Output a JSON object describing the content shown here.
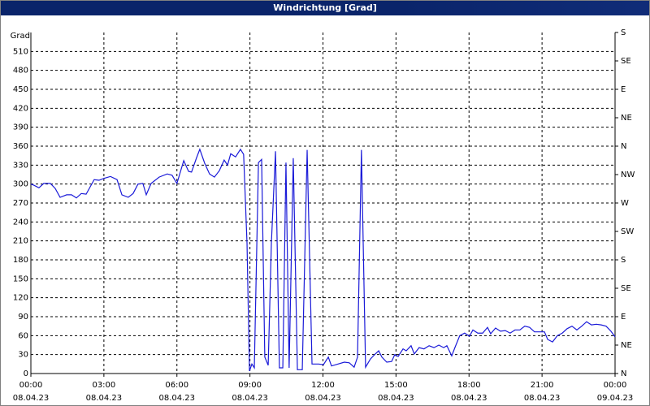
{
  "chart_data": {
    "type": "line",
    "title": "Windrichtung [Grad]",
    "y_label": "Grad",
    "color": "#1a1ad8",
    "grid": true,
    "xlim": [
      0,
      24
    ],
    "ylim": [
      0,
      540
    ],
    "y2lim": [
      0,
      540
    ],
    "xticks": [
      {
        "value": 0,
        "label": [
          "00:00",
          "08.04.23"
        ]
      },
      {
        "value": 3,
        "label": [
          "03:00",
          "08.04.23"
        ]
      },
      {
        "value": 6,
        "label": [
          "06:00",
          "08.04.23"
        ]
      },
      {
        "value": 9,
        "label": [
          "09:00",
          "08.04.23"
        ]
      },
      {
        "value": 12,
        "label": [
          "12:00",
          "08.04.23"
        ]
      },
      {
        "value": 15,
        "label": [
          "15:00",
          "08.04.23"
        ]
      },
      {
        "value": 18,
        "label": [
          "18:00",
          "08.04.23"
        ]
      },
      {
        "value": 21,
        "label": [
          "21:00",
          "08.04.23"
        ]
      },
      {
        "value": 24,
        "label": [
          "00:00",
          "09.04.23"
        ]
      }
    ],
    "yticks": [
      0,
      30,
      60,
      90,
      120,
      150,
      180,
      210,
      240,
      270,
      300,
      330,
      360,
      390,
      420,
      450,
      480,
      510
    ],
    "y2ticks": [
      {
        "value": 0,
        "label": "N"
      },
      {
        "value": 45,
        "label": "NE"
      },
      {
        "value": 90,
        "label": "E"
      },
      {
        "value": 135,
        "label": "SE"
      },
      {
        "value": 180,
        "label": "S"
      },
      {
        "value": 225,
        "label": "SW"
      },
      {
        "value": 270,
        "label": "W"
      },
      {
        "value": 315,
        "label": "NW"
      },
      {
        "value": 360,
        "label": "N"
      },
      {
        "value": 405,
        "label": "NE"
      },
      {
        "value": 450,
        "label": "E"
      },
      {
        "value": 495,
        "label": "SE"
      },
      {
        "value": 540,
        "label": "S"
      }
    ],
    "x": [
      0,
      0.13,
      0.33,
      0.53,
      0.8,
      1.0,
      1.2,
      1.47,
      1.67,
      1.87,
      2.07,
      2.27,
      2.6,
      2.8,
      3.0,
      3.27,
      3.54,
      3.74,
      4.0,
      4.2,
      4.4,
      4.6,
      4.74,
      4.94,
      5.27,
      5.6,
      5.8,
      6.0,
      6.28,
      6.48,
      6.6,
      6.81,
      6.94,
      7.14,
      7.34,
      7.54,
      7.74,
      7.94,
      8.08,
      8.21,
      8.41,
      8.61,
      8.74,
      8.88,
      8.98,
      9.08,
      9.18,
      9.35,
      9.48,
      9.61,
      9.75,
      9.88,
      10.05,
      10.21,
      10.35,
      10.48,
      10.61,
      10.78,
      10.95,
      11.15,
      11.35,
      11.55,
      11.82,
      12.02,
      12.22,
      12.35,
      12.62,
      12.88,
      13.08,
      13.28,
      13.42,
      13.58,
      13.75,
      13.95,
      14.15,
      14.29,
      14.42,
      14.62,
      14.82,
      14.95,
      15.09,
      15.29,
      15.42,
      15.62,
      15.75,
      15.95,
      16.15,
      16.36,
      16.56,
      16.76,
      16.96,
      17.09,
      17.29,
      17.42,
      17.62,
      17.82,
      18.02,
      18.16,
      18.36,
      18.56,
      18.76,
      18.89,
      19.09,
      19.29,
      19.49,
      19.69,
      19.89,
      20.09,
      20.29,
      20.49,
      20.69,
      20.89,
      21.1,
      21.23,
      21.43,
      21.63,
      21.83,
      22.03,
      22.23,
      22.43,
      22.63,
      22.83,
      23.03,
      23.23,
      23.43,
      23.63,
      23.83,
      24
    ],
    "values": [
      300,
      298,
      294,
      301,
      301,
      293,
      279,
      283,
      283,
      278,
      285,
      284,
      307,
      306,
      309,
      312,
      307,
      283,
      279,
      285,
      300,
      301,
      283,
      301,
      311,
      316,
      314,
      301,
      337,
      320,
      319,
      342,
      355,
      333,
      316,
      311,
      321,
      338,
      330,
      348,
      343,
      355,
      347,
      206,
      4,
      15,
      9,
      334,
      339,
      26,
      13,
      206,
      352,
      9,
      9,
      334,
      9,
      341,
      6,
      6,
      354,
      15,
      15,
      14,
      26,
      12,
      15,
      18,
      17,
      10,
      26,
      354,
      10,
      23,
      31,
      36,
      26,
      18,
      19,
      30,
      27,
      39,
      36,
      44,
      31,
      41,
      39,
      44,
      41,
      45,
      41,
      44,
      28,
      41,
      60,
      64,
      59,
      69,
      64,
      64,
      73,
      63,
      72,
      67,
      68,
      64,
      69,
      69,
      75,
      73,
      66,
      66,
      66,
      54,
      50,
      60,
      64,
      71,
      75,
      69,
      75,
      82,
      77,
      78,
      77,
      75,
      67,
      58
    ]
  }
}
